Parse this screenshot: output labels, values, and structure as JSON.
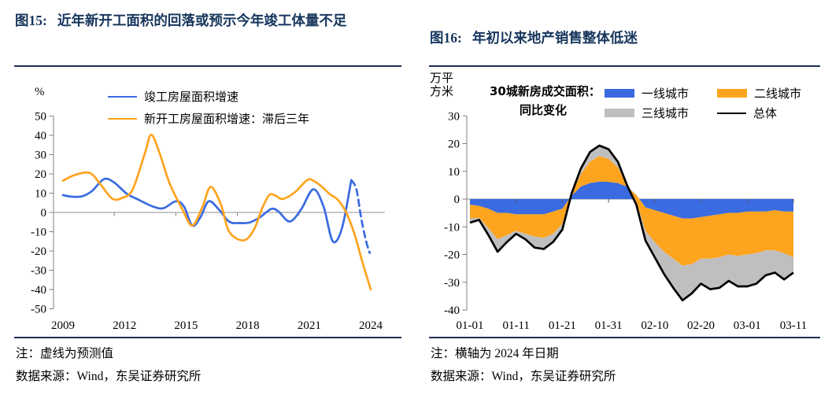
{
  "figures": [
    {
      "label": "图15:",
      "title": "近年新开工面积的回落或预示今年竣工体量不足",
      "note": "注：虚线为预测值",
      "source": "数据来源：Wind，东吴证券研究所"
    },
    {
      "label": "图16:",
      "title": "年初以来地产销售整体低迷",
      "note": "注：横轴为 2024 年日期",
      "source": "数据来源：Wind，东吴证券研究所",
      "y_unit_lines": [
        "万平",
        "方米"
      ],
      "legend_title_lines": [
        "30城新房成交面积：",
        "同比变化"
      ]
    }
  ],
  "colors": {
    "title_navy": "#17365D",
    "rule": "#1C2F55",
    "axis": "#808080",
    "zero_line": "#A6A6A6",
    "blue": "#3A6BE0",
    "orange": "#FFA41E",
    "gray": "#BFBFBF",
    "black": "#000000"
  },
  "chart_data": [
    {
      "type": "line",
      "title": "近年新开工面积的回落或预示今年竣工体量不足",
      "xlabel": "",
      "ylabel": "%",
      "ylim": [
        -50,
        50
      ],
      "xlim": [
        2009,
        2024
      ],
      "grid": false,
      "legend_position": "top",
      "y_ticks": [
        50,
        40,
        30,
        20,
        10,
        0,
        -10,
        -20,
        -30,
        -40,
        -50
      ],
      "x_ticks": [
        2009,
        2012,
        2015,
        2018,
        2021,
        2024
      ],
      "x_minor_ticks": [
        2011.5,
        2014.5,
        2017.5,
        2020.5,
        2023.5
      ],
      "legend": [
        {
          "label": "竣工房屋面积增速",
          "color": "#3A6BE0",
          "type": "line"
        },
        {
          "label": "新开工房屋面积增速：滞后三年",
          "color": "#FFA41E",
          "type": "line"
        }
      ],
      "series": [
        {
          "name": "竣工房屋面积增速",
          "color": "#3A6BE0",
          "dash": false,
          "points": [
            [
              2009,
              9
            ],
            [
              2009.4,
              8.2
            ],
            [
              2009.9,
              8.3
            ],
            [
              2010.4,
              11
            ],
            [
              2011,
              17.3
            ],
            [
              2011.5,
              15.5
            ],
            [
              2012.1,
              9.8
            ],
            [
              2012.7,
              6.5
            ],
            [
              2013.4,
              3
            ],
            [
              2013.9,
              2.2
            ],
            [
              2014.5,
              5.8
            ],
            [
              2014.9,
              3
            ],
            [
              2015.3,
              -6.8
            ],
            [
              2015.7,
              -2.5
            ],
            [
              2016.1,
              5.8
            ],
            [
              2016.6,
              1.5
            ],
            [
              2017.1,
              -4.8
            ],
            [
              2017.6,
              -5.5
            ],
            [
              2018.1,
              -5.2
            ],
            [
              2018.6,
              -2.5
            ],
            [
              2019.15,
              1.8
            ],
            [
              2019.5,
              0.5
            ],
            [
              2020.05,
              -4.7
            ],
            [
              2020.6,
              1.5
            ],
            [
              2021.2,
              12
            ],
            [
              2021.7,
              3
            ],
            [
              2022.15,
              -15
            ],
            [
              2022.6,
              -8
            ],
            [
              2023.05,
              16.8
            ]
          ]
        },
        {
          "name": "竣工房屋面积增速（预测值）",
          "color": "#3A6BE0",
          "dash": true,
          "points": [
            [
              2023.05,
              16.8
            ],
            [
              2023.3,
              12
            ],
            [
              2023.55,
              -4
            ],
            [
              2023.8,
              -16
            ],
            [
              2023.95,
              -21
            ]
          ]
        },
        {
          "name": "新开工房屋面积增速：滞后三年",
          "color": "#FFA41E",
          "dash": false,
          "points": [
            [
              2009,
              16.5
            ],
            [
              2009.6,
              19.5
            ],
            [
              2010.3,
              20.5
            ],
            [
              2010.8,
              15
            ],
            [
              2011.4,
              7.2
            ],
            [
              2011.9,
              7.6
            ],
            [
              2012.4,
              12
            ],
            [
              2013,
              31
            ],
            [
              2013.3,
              40.3
            ],
            [
              2013.7,
              31
            ],
            [
              2014.2,
              15
            ],
            [
              2014.8,
              2
            ],
            [
              2015.3,
              -6.8
            ],
            [
              2015.8,
              3
            ],
            [
              2016.2,
              13.3
            ],
            [
              2016.7,
              4
            ],
            [
              2017.1,
              -10
            ],
            [
              2017.8,
              -14.5
            ],
            [
              2018.3,
              -9
            ],
            [
              2018.7,
              2
            ],
            [
              2019.05,
              9
            ],
            [
              2019.35,
              8.8
            ],
            [
              2019.7,
              7
            ],
            [
              2020.3,
              10.5
            ],
            [
              2020.9,
              16.8
            ],
            [
              2021.2,
              16.5
            ],
            [
              2021.6,
              13.5
            ],
            [
              2022,
              9.5
            ],
            [
              2022.4,
              6.5
            ],
            [
              2022.8,
              0
            ],
            [
              2023.2,
              -11
            ],
            [
              2023.6,
              -26
            ],
            [
              2024,
              -40
            ]
          ]
        }
      ]
    },
    {
      "type": "area",
      "stacked": true,
      "title": "30城新房成交面积：同比变化",
      "xlabel": "",
      "ylabel": "万平方米",
      "ylim": [
        -40,
        30
      ],
      "grid": false,
      "legend_position": "top",
      "y_ticks": [
        30,
        20,
        10,
        0,
        -10,
        -20,
        -30,
        -40
      ],
      "x_tick_labels": [
        "01-01",
        "01-11",
        "01-21",
        "01-31",
        "02-10",
        "02-20",
        "03-01",
        "03-11"
      ],
      "x_tick_days": [
        0,
        10,
        20,
        30,
        40,
        50,
        60,
        70
      ],
      "x_days": [
        0,
        2,
        4,
        6,
        8,
        10,
        12,
        14,
        16,
        18,
        20,
        22,
        24,
        26,
        28,
        30,
        32,
        34,
        36,
        38,
        40,
        42,
        44,
        46,
        48,
        50,
        52,
        54,
        56,
        58,
        60,
        62,
        64,
        66,
        68,
        70
      ],
      "legend": [
        {
          "label": "一线城市",
          "color": "#3A6BE0",
          "type": "area"
        },
        {
          "label": "二线城市",
          "color": "#FFA41E",
          "type": "area"
        },
        {
          "label": "三线城市",
          "color": "#BFBFBF",
          "type": "area"
        },
        {
          "label": "总体",
          "color": "#000000",
          "type": "line"
        }
      ],
      "series": [
        {
          "name": "一线城市",
          "color": "#3A6BE0",
          "values": [
            -2,
            -2.5,
            -3.5,
            -5,
            -5,
            -5.5,
            -5.5,
            -5.5,
            -5.5,
            -4.5,
            -3.5,
            1.2,
            4.5,
            5.8,
            6.3,
            6.2,
            5.8,
            4.5,
            1.5,
            -3,
            -4,
            -5,
            -6,
            -7,
            -7,
            -6.5,
            -6,
            -5.5,
            -5,
            -5,
            -4.5,
            -4.5,
            -4.5,
            -4,
            -4.5,
            -4.5
          ]
        },
        {
          "name": "二线城市",
          "color": "#FFA41E",
          "values": [
            -5,
            -4.3,
            -7,
            -9.5,
            -8,
            -6,
            -7,
            -8,
            -8.5,
            -8,
            -5.5,
            0.6,
            4.5,
            7.7,
            9.2,
            8.3,
            5.7,
            0.5,
            -2.5,
            -8.5,
            -11.5,
            -14,
            -15.5,
            -17,
            -16.5,
            -15,
            -15.5,
            -15.5,
            -15,
            -15.5,
            -15.5,
            -15,
            -14,
            -14.5,
            -15,
            -16.5
          ]
        },
        {
          "name": "三线城市",
          "color": "#BFBFBF",
          "values": [
            -1.5,
            -0.7,
            -2.5,
            -4.5,
            -2.5,
            -1,
            -2,
            -4,
            -4,
            -3,
            -2,
            0.2,
            2,
            3.5,
            3.8,
            3.5,
            2,
            0,
            -1,
            -3.5,
            -5.5,
            -8,
            -10.5,
            -12.5,
            -10.5,
            -9,
            -11,
            -11,
            -9.5,
            -11,
            -11.5,
            -11,
            -9,
            -8,
            -9.5,
            -5.5
          ]
        }
      ],
      "total": {
        "name": "总体",
        "color": "#000000",
        "values": [
          -8.5,
          -7.5,
          -13,
          -19,
          -15.5,
          -12.5,
          -14.5,
          -17.5,
          -18,
          -15.5,
          -11,
          2,
          11,
          17,
          19.3,
          18,
          13.5,
          5,
          -2,
          -15,
          -21,
          -27,
          -32,
          -36.5,
          -34,
          -30.5,
          -32.5,
          -32,
          -29.5,
          -31.5,
          -31.5,
          -30.5,
          -27.5,
          -26.5,
          -29,
          -26.5
        ]
      }
    }
  ]
}
